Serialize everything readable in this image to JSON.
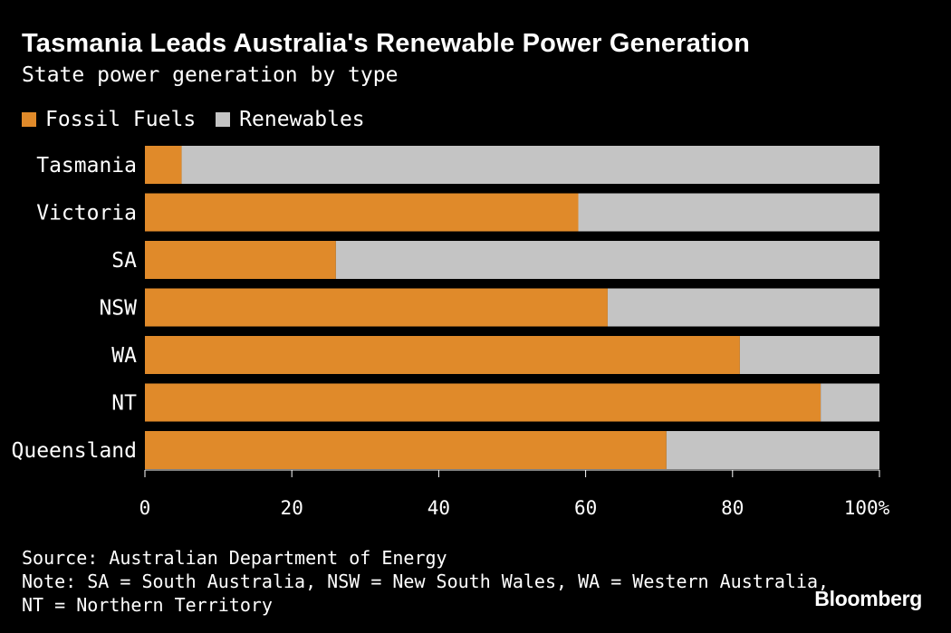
{
  "chart_data": {
    "type": "bar",
    "orientation": "horizontal",
    "stacked": true,
    "title": "Tasmania Leads Australia's Renewable Power Generation",
    "subtitle": "State power generation by type",
    "categories": [
      "Tasmania",
      "Victoria",
      "SA",
      "NSW",
      "WA",
      "NT",
      "Queensland"
    ],
    "series": [
      {
        "name": "Fossil Fuels",
        "color": "#e08a2a",
        "values": [
          5,
          59,
          26,
          63,
          81,
          92,
          71
        ]
      },
      {
        "name": "Renewables",
        "color": "#c4c4c4",
        "values": [
          95,
          41,
          74,
          37,
          19,
          8,
          29
        ]
      }
    ],
    "xlim": [
      0,
      100
    ],
    "x_ticks": [
      "0",
      "20",
      "40",
      "60",
      "80",
      "100%"
    ],
    "x_tick_values": [
      0,
      20,
      40,
      60,
      80,
      100
    ],
    "legend_position": "top-left",
    "grid": false
  },
  "footer": {
    "source": "Source: Australian Department of Energy",
    "note_line1": "Note: SA = South Australia, NSW = New South Wales, WA = Western Australia,",
    "note_line2": "NT = Northern Territory"
  },
  "brand": "Bloomberg"
}
